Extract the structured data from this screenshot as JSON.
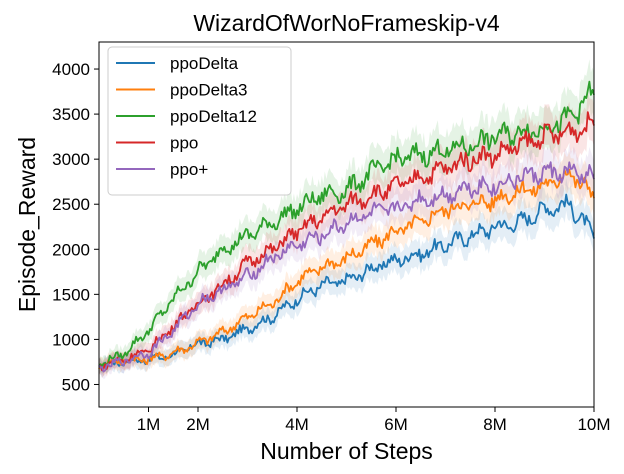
{
  "chart_data": {
    "type": "line",
    "title": "WizardOfWorNoFrameskip-v4",
    "xlabel": "Number of Steps",
    "ylabel": "Episode_Reward",
    "xlim": [
      0,
      10000000
    ],
    "ylim": [
      250,
      4300
    ],
    "x_ticks": [
      {
        "value": 1000000,
        "label": "1M"
      },
      {
        "value": 2000000,
        "label": "2M"
      },
      {
        "value": 4000000,
        "label": "4M"
      },
      {
        "value": 6000000,
        "label": "6M"
      },
      {
        "value": 8000000,
        "label": "8M"
      },
      {
        "value": 10000000,
        "label": "10M"
      }
    ],
    "y_ticks": [
      {
        "value": 500,
        "label": "500"
      },
      {
        "value": 1000,
        "label": "1000"
      },
      {
        "value": 1500,
        "label": "1500"
      },
      {
        "value": 2000,
        "label": "2000"
      },
      {
        "value": 2500,
        "label": "2500"
      },
      {
        "value": 3000,
        "label": "3000"
      },
      {
        "value": 3500,
        "label": "3500"
      },
      {
        "value": 4000,
        "label": "4000"
      }
    ],
    "grid": false,
    "legend_position": "top-left",
    "x": [
      0,
      500000,
      1000000,
      1500000,
      2000000,
      2500000,
      3000000,
      3500000,
      4000000,
      4500000,
      5000000,
      5500000,
      6000000,
      6500000,
      7000000,
      7500000,
      8000000,
      8500000,
      9000000,
      9500000,
      10000000
    ],
    "series": [
      {
        "name": "ppoDelta",
        "color": "#1f77b4",
        "values": [
          700,
          760,
          780,
          830,
          950,
          1000,
          1120,
          1250,
          1450,
          1600,
          1650,
          1780,
          1880,
          1950,
          2050,
          2150,
          2250,
          2300,
          2450,
          2500,
          2150
        ]
      },
      {
        "name": "ppoDelta3",
        "color": "#ff7f0e",
        "values": [
          720,
          770,
          780,
          850,
          960,
          1080,
          1250,
          1400,
          1650,
          1800,
          1900,
          2050,
          2200,
          2300,
          2450,
          2500,
          2550,
          2650,
          2700,
          2850,
          2600
        ]
      },
      {
        "name": "ppoDelta12",
        "color": "#2ca02c",
        "values": [
          720,
          840,
          1100,
          1450,
          1750,
          2000,
          2150,
          2300,
          2450,
          2600,
          2650,
          2850,
          3000,
          3050,
          3100,
          3150,
          3250,
          3300,
          3350,
          3450,
          3750
        ]
      },
      {
        "name": "ppo",
        "color": "#d62728",
        "values": [
          700,
          780,
          880,
          1150,
          1400,
          1600,
          1850,
          2000,
          2200,
          2350,
          2500,
          2600,
          2700,
          2800,
          2900,
          3000,
          3050,
          3150,
          3250,
          3300,
          3400
        ]
      },
      {
        "name": "ppo+",
        "color": "#9467bd",
        "values": [
          680,
          760,
          850,
          1100,
          1400,
          1550,
          1700,
          1900,
          2050,
          2150,
          2300,
          2400,
          2450,
          2550,
          2600,
          2700,
          2700,
          2800,
          2850,
          2850,
          2800
        ]
      }
    ]
  }
}
